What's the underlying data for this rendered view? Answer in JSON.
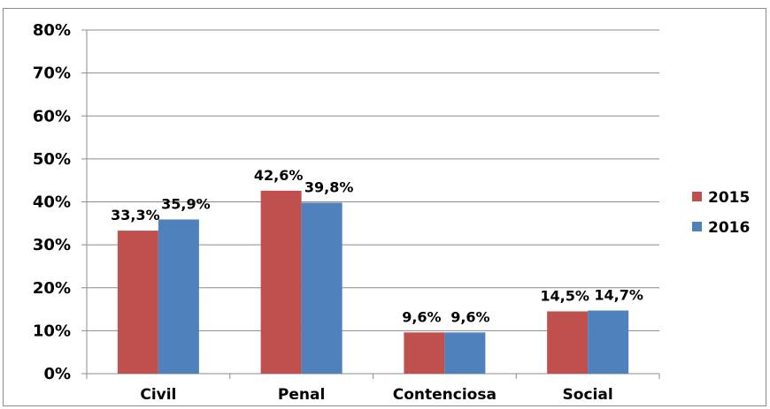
{
  "chart_data": {
    "type": "bar",
    "categories": [
      "Civil",
      "Penal",
      "Contenciosa",
      "Social"
    ],
    "series": [
      {
        "name": "2015",
        "color": "#c0504d",
        "values": [
          33.3,
          42.6,
          9.6,
          14.5
        ],
        "labels": [
          "33,3%",
          "42,6%",
          "9,6%",
          "14,5%"
        ]
      },
      {
        "name": "2016",
        "color": "#4f81bd",
        "values": [
          35.9,
          39.8,
          9.6,
          14.7
        ],
        "labels": [
          "35,9%",
          "39,8%",
          "9,6%",
          "14,7%"
        ]
      }
    ],
    "ylim": [
      0,
      80
    ],
    "yticks": [
      "0%",
      "10%",
      "20%",
      "30%",
      "40%",
      "50%",
      "60%",
      "70%",
      "80%"
    ],
    "grid": true,
    "legend_position": "right",
    "colors": {
      "gridline": "#8c8c8c",
      "axis": "#8c8c8c"
    }
  }
}
